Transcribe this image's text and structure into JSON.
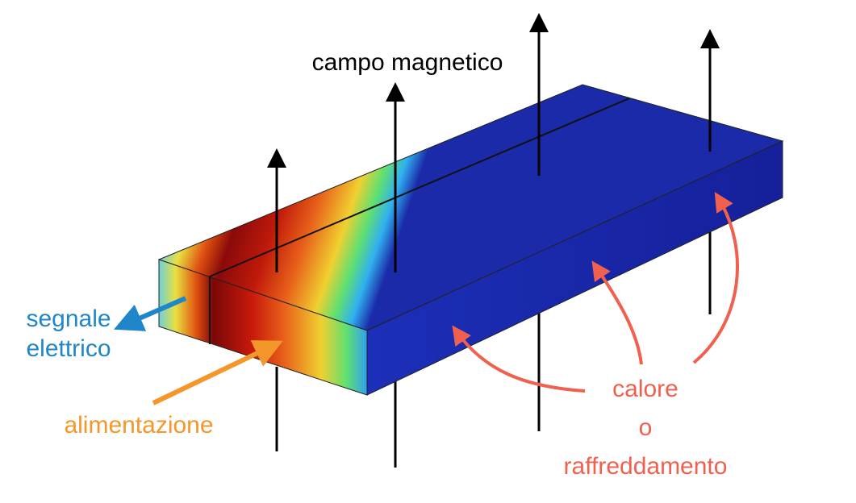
{
  "labels": {
    "field": "campo magnetico",
    "signal": [
      "segnale",
      "elettrico"
    ],
    "power": "alimentazione",
    "heat": [
      "calore",
      "o",
      "raffreddamento"
    ]
  }
}
